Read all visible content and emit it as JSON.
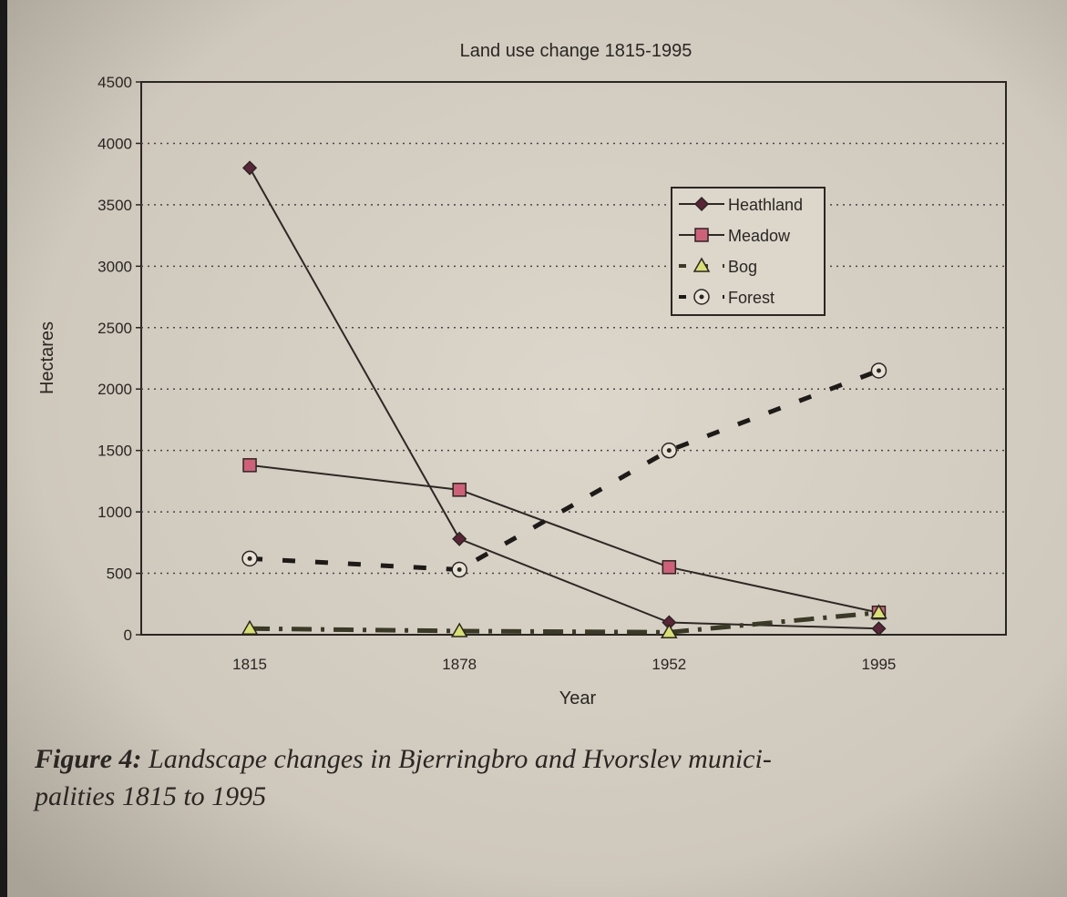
{
  "chart_data": {
    "type": "line",
    "title": "Land use change 1815-1995",
    "x_label": "Year",
    "y_label": "Hectares",
    "categories": [
      "1815",
      "1878",
      "1952",
      "1995"
    ],
    "ylim": [
      0,
      4500
    ],
    "yticks": [
      0,
      500,
      1000,
      1500,
      2000,
      2500,
      3000,
      3500,
      4000,
      4500
    ],
    "grid": true,
    "legend_position": "upper right",
    "series": [
      {
        "name": "Heathland",
        "color": "#5c2438",
        "marker": "diamond",
        "line_style": "solid",
        "values": [
          3800,
          780,
          100,
          50
        ]
      },
      {
        "name": "Meadow",
        "color": "#d0607a",
        "marker": "square",
        "line_style": "solid",
        "values": [
          1380,
          1180,
          550,
          180
        ]
      },
      {
        "name": "Bog",
        "color": "#d8e070",
        "marker": "triangle",
        "line_style": "dashdot",
        "values": [
          50,
          30,
          20,
          180
        ]
      },
      {
        "name": "Forest",
        "color": "#e8e2d6",
        "marker": "circle",
        "line_style": "dashed",
        "values": [
          620,
          530,
          1500,
          2150
        ]
      }
    ],
    "caption_label": "Figure 4:",
    "caption_lines": [
      "Landscape changes in Bjerringbro and Hvorslev munici-",
      "palities 1815 to 1995"
    ]
  }
}
